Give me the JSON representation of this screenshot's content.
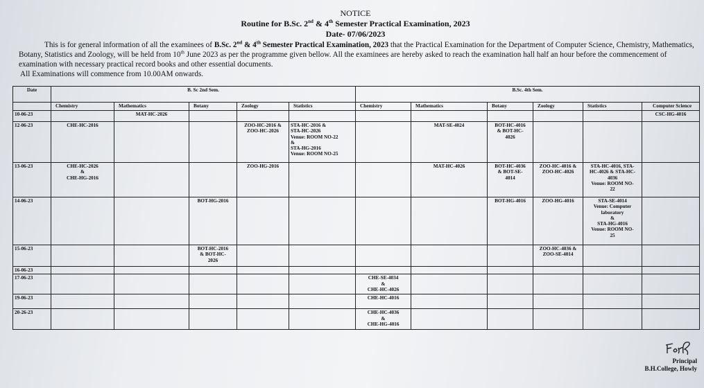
{
  "header": {
    "notice": "NOTICE",
    "title_pre": "Routine for B.Sc. 2",
    "title_sup1": "nd",
    "title_mid": " & 4",
    "title_sup2": "th",
    "title_post": " Semester Practical Examination, 2023",
    "date": "Date- 07/06/2023"
  },
  "body": {
    "p1": "This is for general information of all the examinees of ",
    "p1_bold_pre": "B.Sc. 2",
    "p1_sup1": "nd",
    "p1_bold_mid": " & 4",
    "p1_sup2": "th",
    "p1_bold_post": " Semester Practical Examination, 2023",
    "p2": " that the Practical Examination for the Department of Computer Science, Chemistry, Mathematics, Botany, Statistics and Zoology, will be held from 10",
    "p2_sup": "th",
    "p3": " June 2023 as per the programme given bellow. All the examinees are hereby asked to reach the examination hall half an hour before the commencement of examination with necessary practical record books and other essential documents.",
    "commence": "All Examinations will commence from 10.00AM onwards."
  },
  "table": {
    "date_header": "Date",
    "sem2_header": "B. Sc 2nd Sem.",
    "sem4_header": "B.Sc. 4th Sem.",
    "subjects": [
      "Chemistry",
      "Mathematics",
      "Botany",
      "Zoology",
      "Statistics",
      "Chemistry",
      "Mathematics",
      "Botany",
      "Zoology",
      "Statistics",
      "Computer Science"
    ],
    "rows": [
      {
        "date": "10-06-23",
        "cells": [
          "",
          "MAT-HC-2026",
          "",
          "",
          "",
          "",
          "",
          "",
          "",
          "",
          "CSC-HG-4016"
        ]
      },
      {
        "date": "12-06-23",
        "cells": [
          "CHE-HC-2016",
          "",
          "",
          "ZOO-HC-2016 &\nZOO-HC-2026",
          "STA-HC-2016 &\nSTA-HC-2026\nVenue: ROOM NO-22\n&\nSTA-HG-2016\nVenue: ROOM NO-25",
          "",
          "MAT-SE-4024",
          "BOT-HC-4016\n& BOT-HC-\n4026",
          "",
          "",
          ""
        ]
      },
      {
        "date": "13-06-23",
        "cells": [
          "CHE-HC-2026\n&\nCHE-HG-2016",
          "",
          "",
          "ZOO-HG-2016",
          "",
          "",
          "MAT-HC-4026",
          "BOT-HC-4036\n& BOT-SE-\n4014",
          "ZOO-HC-4016 &\nZOO-HC-4026",
          "STA-HC-4016, STA-\nHC-4026 & STA-HC-\n4036\nVenue: ROOM NO-\n22",
          ""
        ]
      },
      {
        "date": "14-06-23",
        "cells": [
          "",
          "",
          "BOT-HG-2016",
          "",
          "",
          "",
          "",
          "BOT-HG-4016",
          "ZOO-HG-4016",
          "STA-SE-4014\nVenue: Computer\nlaboratory\n&\nSTA-HG-4016\nVenue: ROOM NO-\n25",
          ""
        ]
      },
      {
        "date": "15-06-23",
        "cells": [
          "",
          "",
          "BOT-HC-2016\n& BOT-HC-\n2026",
          "",
          "",
          "",
          "",
          "",
          "ZOO-HC-4036 &\nZOO-SE-4014",
          "",
          ""
        ]
      },
      {
        "date": "16-06-23",
        "cells": [
          "",
          "",
          "",
          "",
          "",
          "",
          "",
          "",
          "",
          "",
          ""
        ]
      },
      {
        "date": "17-06-23",
        "cells": [
          "",
          "",
          "",
          "",
          "",
          "CHE-SE-4034\n&\nCHE-HC-4026",
          "",
          "",
          "",
          "",
          ""
        ]
      },
      {
        "date": "19-06-23",
        "cells": [
          "",
          "",
          "",
          "",
          "",
          "CHE-HC-4016",
          "",
          "",
          "",
          "",
          ""
        ]
      },
      {
        "date": "20-26-23",
        "cells": [
          "",
          "",
          "",
          "",
          "",
          "CHE-HC-4036\n&\nCHE-HG-4016",
          "",
          "",
          "",
          "",
          ""
        ]
      }
    ]
  },
  "signature": {
    "handwritten": "For",
    "title": "Principal",
    "college": "B.H.College, Howly"
  }
}
